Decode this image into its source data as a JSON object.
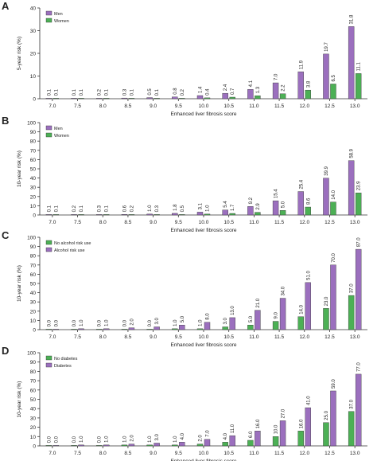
{
  "colors": {
    "purple": "#9b6fbe",
    "green": "#4cb055"
  },
  "chart_data": [
    {
      "type": "bar",
      "panel_label": "A",
      "ylabel": "5-year risk (%)",
      "xlabel": "Enhanced liver fibrosis score",
      "ylim": [
        0,
        40
      ],
      "yticks": [
        0,
        10,
        20,
        30,
        40
      ],
      "legend_placement": "top-left",
      "categories": [
        "7.0",
        "7.5",
        "8.0",
        "8.5",
        "9.0",
        "9.5",
        "10.0",
        "10.5",
        "11.0",
        "11.5",
        "12.0",
        "12.5",
        "13.0"
      ],
      "series": [
        {
          "name": "Men",
          "color": "#9b6fbe",
          "values": [
            0.1,
            0.1,
            0.2,
            0.3,
            0.5,
            0.8,
            1.4,
            2.4,
            4.1,
            7.0,
            11.9,
            19.7,
            31.8
          ]
        },
        {
          "name": "Women",
          "color": "#4cb055",
          "values": [
            0.1,
            0.1,
            0.1,
            0.1,
            0.1,
            0.2,
            0.4,
            0.7,
            1.3,
            2.2,
            3.8,
            6.5,
            11.1
          ]
        }
      ]
    },
    {
      "type": "bar",
      "panel_label": "B",
      "ylabel": "10-year risk (%)",
      "xlabel": "Enhanced liver fibrosis score",
      "ylim": [
        0,
        100
      ],
      "yticks": [
        0,
        10,
        20,
        30,
        40,
        50,
        60,
        70,
        80,
        90,
        100
      ],
      "legend_placement": "top-left",
      "categories": [
        "7.0",
        "7.5",
        "8.0",
        "8.5",
        "9.0",
        "9.5",
        "10.0",
        "10.5",
        "11.0",
        "11.5",
        "12.0",
        "12.5",
        "13.0"
      ],
      "series": [
        {
          "name": "Men",
          "color": "#9b6fbe",
          "values": [
            0.1,
            0.2,
            0.3,
            0.6,
            1.0,
            1.8,
            3.1,
            5.4,
            9.2,
            15.4,
            25.4,
            39.9,
            58.9
          ]
        },
        {
          "name": "Women",
          "color": "#4cb055",
          "values": [
            0.1,
            0.1,
            0.1,
            0.2,
            0.3,
            0.5,
            1.0,
            1.7,
            2.9,
            5.0,
            8.6,
            14.0,
            23.9
          ]
        }
      ]
    },
    {
      "type": "bar",
      "panel_label": "C",
      "ylabel": "10-year risk (%)",
      "xlabel": "Enhanced liver fibrosis score",
      "ylim": [
        0,
        100
      ],
      "yticks": [
        0,
        10,
        20,
        30,
        40,
        50,
        60,
        70,
        80,
        90,
        100
      ],
      "legend_placement": "top-left",
      "categories": [
        "7.0",
        "7.5",
        "8.0",
        "8.5",
        "9.0",
        "9.5",
        "10.0",
        "10.5",
        "11.0",
        "11.5",
        "12.0",
        "12.5",
        "13.0"
      ],
      "series": [
        {
          "name": "No alcohol risk use",
          "color": "#4cb055",
          "values": [
            0.0,
            0.0,
            0.0,
            0.0,
            0.0,
            1.0,
            1.0,
            3.0,
            5.0,
            9.0,
            14.0,
            23.0,
            37.0
          ]
        },
        {
          "name": "Alcohol risk use",
          "color": "#9b6fbe",
          "values": [
            0.0,
            1.0,
            1.0,
            2.0,
            3.0,
            5.0,
            8.0,
            13.0,
            21.0,
            34.0,
            51.0,
            70.0,
            87.0
          ]
        }
      ]
    },
    {
      "type": "bar",
      "panel_label": "D",
      "ylabel": "10-year risk (%)",
      "xlabel": "Enhanced liver fibrosis score",
      "ylim": [
        0,
        100
      ],
      "yticks": [
        0,
        10,
        20,
        30,
        40,
        50,
        60,
        70,
        80,
        90,
        100
      ],
      "legend_placement": "top-left",
      "categories": [
        "7.0",
        "7.5",
        "8.0",
        "8.5",
        "9.0",
        "9.5",
        "10.0",
        "10.5",
        "11.0",
        "11.5",
        "12.0",
        "12.5",
        "13.0"
      ],
      "series": [
        {
          "name": "No diabetes",
          "color": "#4cb055",
          "values": [
            0.0,
            0.0,
            0.0,
            1.0,
            1.0,
            1.0,
            2.0,
            4.0,
            6.0,
            10.0,
            16.0,
            25.0,
            37.0
          ]
        },
        {
          "name": "Diabetes",
          "color": "#9b6fbe",
          "values": [
            0.0,
            1.0,
            1.0,
            2.0,
            3.0,
            4.0,
            7.0,
            11.0,
            16.0,
            27.0,
            41.0,
            59.0,
            77.0
          ]
        }
      ]
    }
  ]
}
